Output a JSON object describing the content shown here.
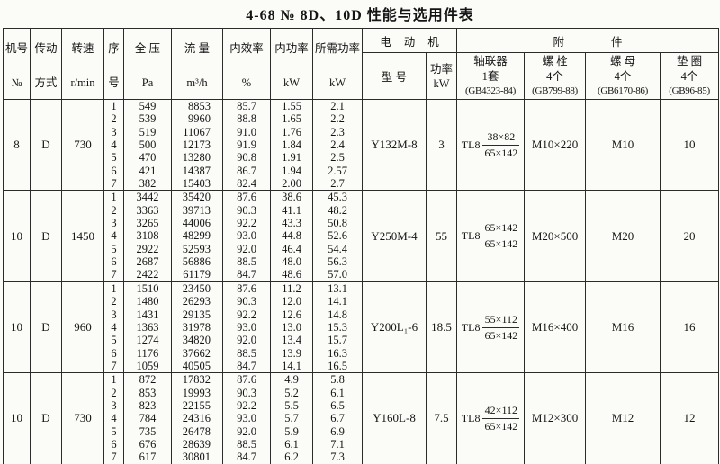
{
  "page": {
    "title": "4-68 № 8D、10D 性能与选用件表"
  },
  "table": {
    "headers": {
      "machine_no": {
        "line1": "机号",
        "line2": "№"
      },
      "drive": {
        "line1": "传动",
        "line2": "方式"
      },
      "speed": {
        "line1": "转速",
        "line2": "r/min"
      },
      "seq": {
        "line1": "序",
        "line2": "号"
      },
      "pressure": {
        "line1": "全 压",
        "line2": "Pa"
      },
      "flow": {
        "line1": "流 量",
        "line2": "m³/h"
      },
      "efficiency": {
        "line1": "内效率",
        "line2": "%"
      },
      "power_internal": {
        "line1": "内功率",
        "line2": "kW"
      },
      "power_required": {
        "line1": "所需功率",
        "line2": "kW"
      },
      "motor_group": "电动机",
      "accessories_group": "附件",
      "motor_model": "型 号",
      "motor_power": {
        "line1": "功率",
        "line2": "kW"
      },
      "coupling": {
        "line1": "轴联器",
        "line2": "1套",
        "line3": "(GB4323-84)"
      },
      "bolt": {
        "line1": "螺 栓",
        "line2": "4个",
        "line3": "(GB799-88)"
      },
      "nut": {
        "line1": "螺 母",
        "line2": "4个",
        "line3": "(GB6170-86)"
      },
      "washer": {
        "line1": "垫 圈",
        "line2": "4个",
        "line3": "(GB96-85)"
      }
    },
    "blocks": [
      {
        "machine_no": "8",
        "drive": "D",
        "speed": "730",
        "rows": [
          {
            "seq": "1",
            "pressure": "549",
            "flow": "8853",
            "eff": "85.7",
            "pi": "1.55",
            "pr": "2.1"
          },
          {
            "seq": "2",
            "pressure": "539",
            "flow": "9960",
            "eff": "88.8",
            "pi": "1.65",
            "pr": "2.2"
          },
          {
            "seq": "3",
            "pressure": "519",
            "flow": "11067",
            "eff": "91.0",
            "pi": "1.76",
            "pr": "2.3"
          },
          {
            "seq": "4",
            "pressure": "500",
            "flow": "12173",
            "eff": "91.9",
            "pi": "1.84",
            "pr": "2.4"
          },
          {
            "seq": "5",
            "pressure": "470",
            "flow": "13280",
            "eff": "90.8",
            "pi": "1.91",
            "pr": "2.5"
          },
          {
            "seq": "6",
            "pressure": "421",
            "flow": "14387",
            "eff": "86.7",
            "pi": "1.94",
            "pr": "2.57"
          },
          {
            "seq": "7",
            "pressure": "382",
            "flow": "15403",
            "eff": "82.4",
            "pi": "2.00",
            "pr": "2.7"
          }
        ],
        "motor_model": "Y132M-8",
        "motor_power": "3",
        "coupling": {
          "prefix": "TL8",
          "num": "38×82",
          "den": "65×142"
        },
        "bolt": "M10×220",
        "nut": "M10",
        "washer": "10"
      },
      {
        "machine_no": "10",
        "drive": "D",
        "speed": "1450",
        "rows": [
          {
            "seq": "1",
            "pressure": "3442",
            "flow": "35420",
            "eff": "87.6",
            "pi": "38.6",
            "pr": "45.3"
          },
          {
            "seq": "2",
            "pressure": "3363",
            "flow": "39713",
            "eff": "90.3",
            "pi": "41.1",
            "pr": "48.2"
          },
          {
            "seq": "3",
            "pressure": "3265",
            "flow": "44006",
            "eff": "92.2",
            "pi": "43.3",
            "pr": "50.8"
          },
          {
            "seq": "4",
            "pressure": "3108",
            "flow": "48299",
            "eff": "93.0",
            "pi": "44.8",
            "pr": "52.6"
          },
          {
            "seq": "5",
            "pressure": "2922",
            "flow": "52593",
            "eff": "92.0",
            "pi": "46.4",
            "pr": "54.4"
          },
          {
            "seq": "6",
            "pressure": "2687",
            "flow": "56886",
            "eff": "88.5",
            "pi": "48.0",
            "pr": "56.3"
          },
          {
            "seq": "7",
            "pressure": "2422",
            "flow": "61179",
            "eff": "84.7",
            "pi": "48.6",
            "pr": "57.0"
          }
        ],
        "motor_model": "Y250M-4",
        "motor_power": "55",
        "coupling": {
          "prefix": "TL8",
          "num": "65×142",
          "den": "65×142"
        },
        "bolt": "M20×500",
        "nut": "M20",
        "washer": "20"
      },
      {
        "machine_no": "10",
        "drive": "D",
        "speed": "960",
        "rows": [
          {
            "seq": "1",
            "pressure": "1510",
            "flow": "23450",
            "eff": "87.6",
            "pi": "11.2",
            "pr": "13.1"
          },
          {
            "seq": "2",
            "pressure": "1480",
            "flow": "26293",
            "eff": "90.3",
            "pi": "12.0",
            "pr": "14.1"
          },
          {
            "seq": "3",
            "pressure": "1431",
            "flow": "29135",
            "eff": "92.2",
            "pi": "12.6",
            "pr": "14.8"
          },
          {
            "seq": "4",
            "pressure": "1363",
            "flow": "31978",
            "eff": "93.0",
            "pi": "13.0",
            "pr": "15.3"
          },
          {
            "seq": "5",
            "pressure": "1274",
            "flow": "34820",
            "eff": "92.0",
            "pi": "13.4",
            "pr": "15.7"
          },
          {
            "seq": "6",
            "pressure": "1176",
            "flow": "37662",
            "eff": "88.5",
            "pi": "13.9",
            "pr": "16.3"
          },
          {
            "seq": "7",
            "pressure": "1059",
            "flow": "40505",
            "eff": "84.7",
            "pi": "14.1",
            "pr": "16.5"
          }
        ],
        "motor_model": "Y200L₁-6",
        "motor_power": "18.5",
        "coupling": {
          "prefix": "TL8",
          "num": "55×112",
          "den": "65×142"
        },
        "bolt": "M16×400",
        "nut": "M16",
        "washer": "16"
      },
      {
        "machine_no": "10",
        "drive": "D",
        "speed": "730",
        "rows": [
          {
            "seq": "1",
            "pressure": "872",
            "flow": "17832",
            "eff": "87.6",
            "pi": "4.9",
            "pr": "5.8"
          },
          {
            "seq": "2",
            "pressure": "853",
            "flow": "19993",
            "eff": "90.3",
            "pi": "5.2",
            "pr": "6.1"
          },
          {
            "seq": "3",
            "pressure": "823",
            "flow": "22155",
            "eff": "92.2",
            "pi": "5.5",
            "pr": "6.5"
          },
          {
            "seq": "4",
            "pressure": "784",
            "flow": "24316",
            "eff": "93.0",
            "pi": "5.7",
            "pr": "6.7"
          },
          {
            "seq": "5",
            "pressure": "735",
            "flow": "26478",
            "eff": "92.0",
            "pi": "5.9",
            "pr": "6.9"
          },
          {
            "seq": "6",
            "pressure": "676",
            "flow": "28639",
            "eff": "88.5",
            "pi": "6.1",
            "pr": "7.1"
          },
          {
            "seq": "7",
            "pressure": "617",
            "flow": "30801",
            "eff": "84.7",
            "pi": "6.2",
            "pr": "7.3"
          }
        ],
        "motor_model": "Y160L-8",
        "motor_power": "7.5",
        "coupling": {
          "prefix": "TL8",
          "num": "42×112",
          "den": "65×142"
        },
        "bolt": "M12×300",
        "nut": "M12",
        "washer": "12"
      }
    ]
  }
}
